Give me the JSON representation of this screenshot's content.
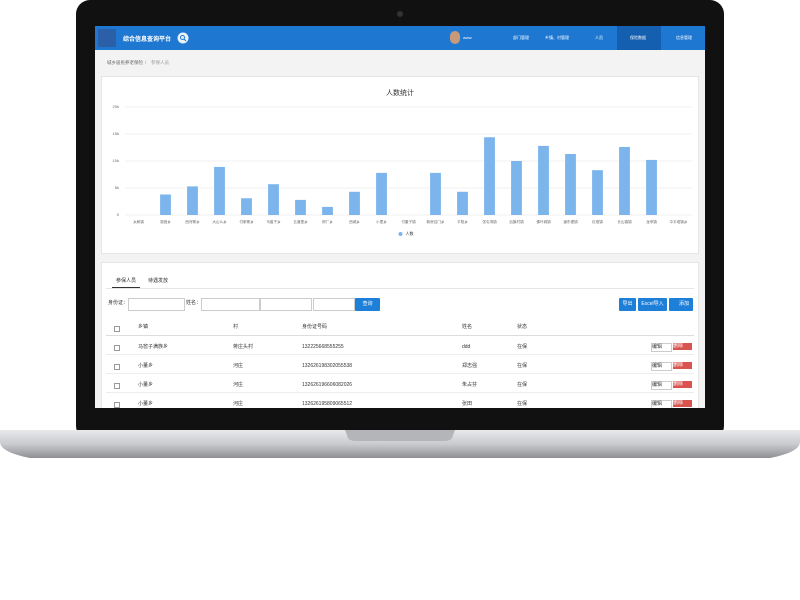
{
  "header": {
    "title": "综合信息查询平台",
    "user": "www",
    "nav": [
      "部门管理",
      "乡镇、村管理",
      "人员",
      "保险数据",
      "信息管理"
    ]
  },
  "breadcrumb": [
    "城乡居民养老保险",
    "参保人员"
  ],
  "chart_data": {
    "type": "bar",
    "title": "人数统计",
    "categories": [
      "太和镇",
      "观音乡",
      "西河寨乡",
      "大山么乡",
      "付家寨乡",
      "马窖子乡",
      "五道堡乡",
      "邢厂乡",
      "西城乡",
      "小里乡",
      "付董子镇",
      "新房召门乡",
      "平阳乡",
      "张屯湾镇",
      "后旗村镇",
      "佛叶城镇",
      "道东堤镇",
      "红塔镇",
      "长山镇镇",
      "龙甲镇",
      "中平塔镇乡"
    ],
    "series": [
      {
        "name": "人数",
        "color": "#7cb5ec",
        "values": [
          0,
          3800,
          5300,
          8900,
          3100,
          5700,
          2800,
          1500,
          4300,
          7800,
          0,
          7800,
          4300,
          14400,
          10000,
          12800,
          11300,
          8300,
          12600,
          10200,
          0
        ]
      }
    ],
    "ylim": [
      0,
      20000
    ],
    "yticks": [
      0,
      {
        "value": 5000,
        "label": "5k"
      },
      {
        "value": 10000,
        "label": "10k"
      },
      {
        "value": 15000,
        "label": "15k"
      },
      {
        "value": 20000,
        "label": "20k"
      }
    ],
    "grid": true,
    "legend": "bottom"
  },
  "tabs": [
    "参保人员",
    "待遇发放"
  ],
  "filters": {
    "id_label": "身份证：",
    "name_label": "姓名：",
    "search": "查询"
  },
  "buttons": [
    "导出",
    "Excel导入",
    "添加"
  ],
  "table": {
    "columns": [
      "乡镇",
      "村",
      "身份证号码",
      "姓名",
      "状态"
    ],
    "rows": [
      [
        "马窖子满族乡",
        "蒋庄头村",
        "132225668555255",
        "ddd",
        "在保"
      ],
      [
        "小董乡",
        "河庄",
        "132626198302055538",
        "郑志强",
        "在保"
      ],
      [
        "小董乡",
        "河庄",
        "132626196606082026",
        "朱占芬",
        "在保"
      ],
      [
        "小董乡",
        "河庄",
        "132626195809065512",
        "张田",
        "在保"
      ]
    ],
    "actions": [
      "编辑",
      "删除"
    ]
  }
}
